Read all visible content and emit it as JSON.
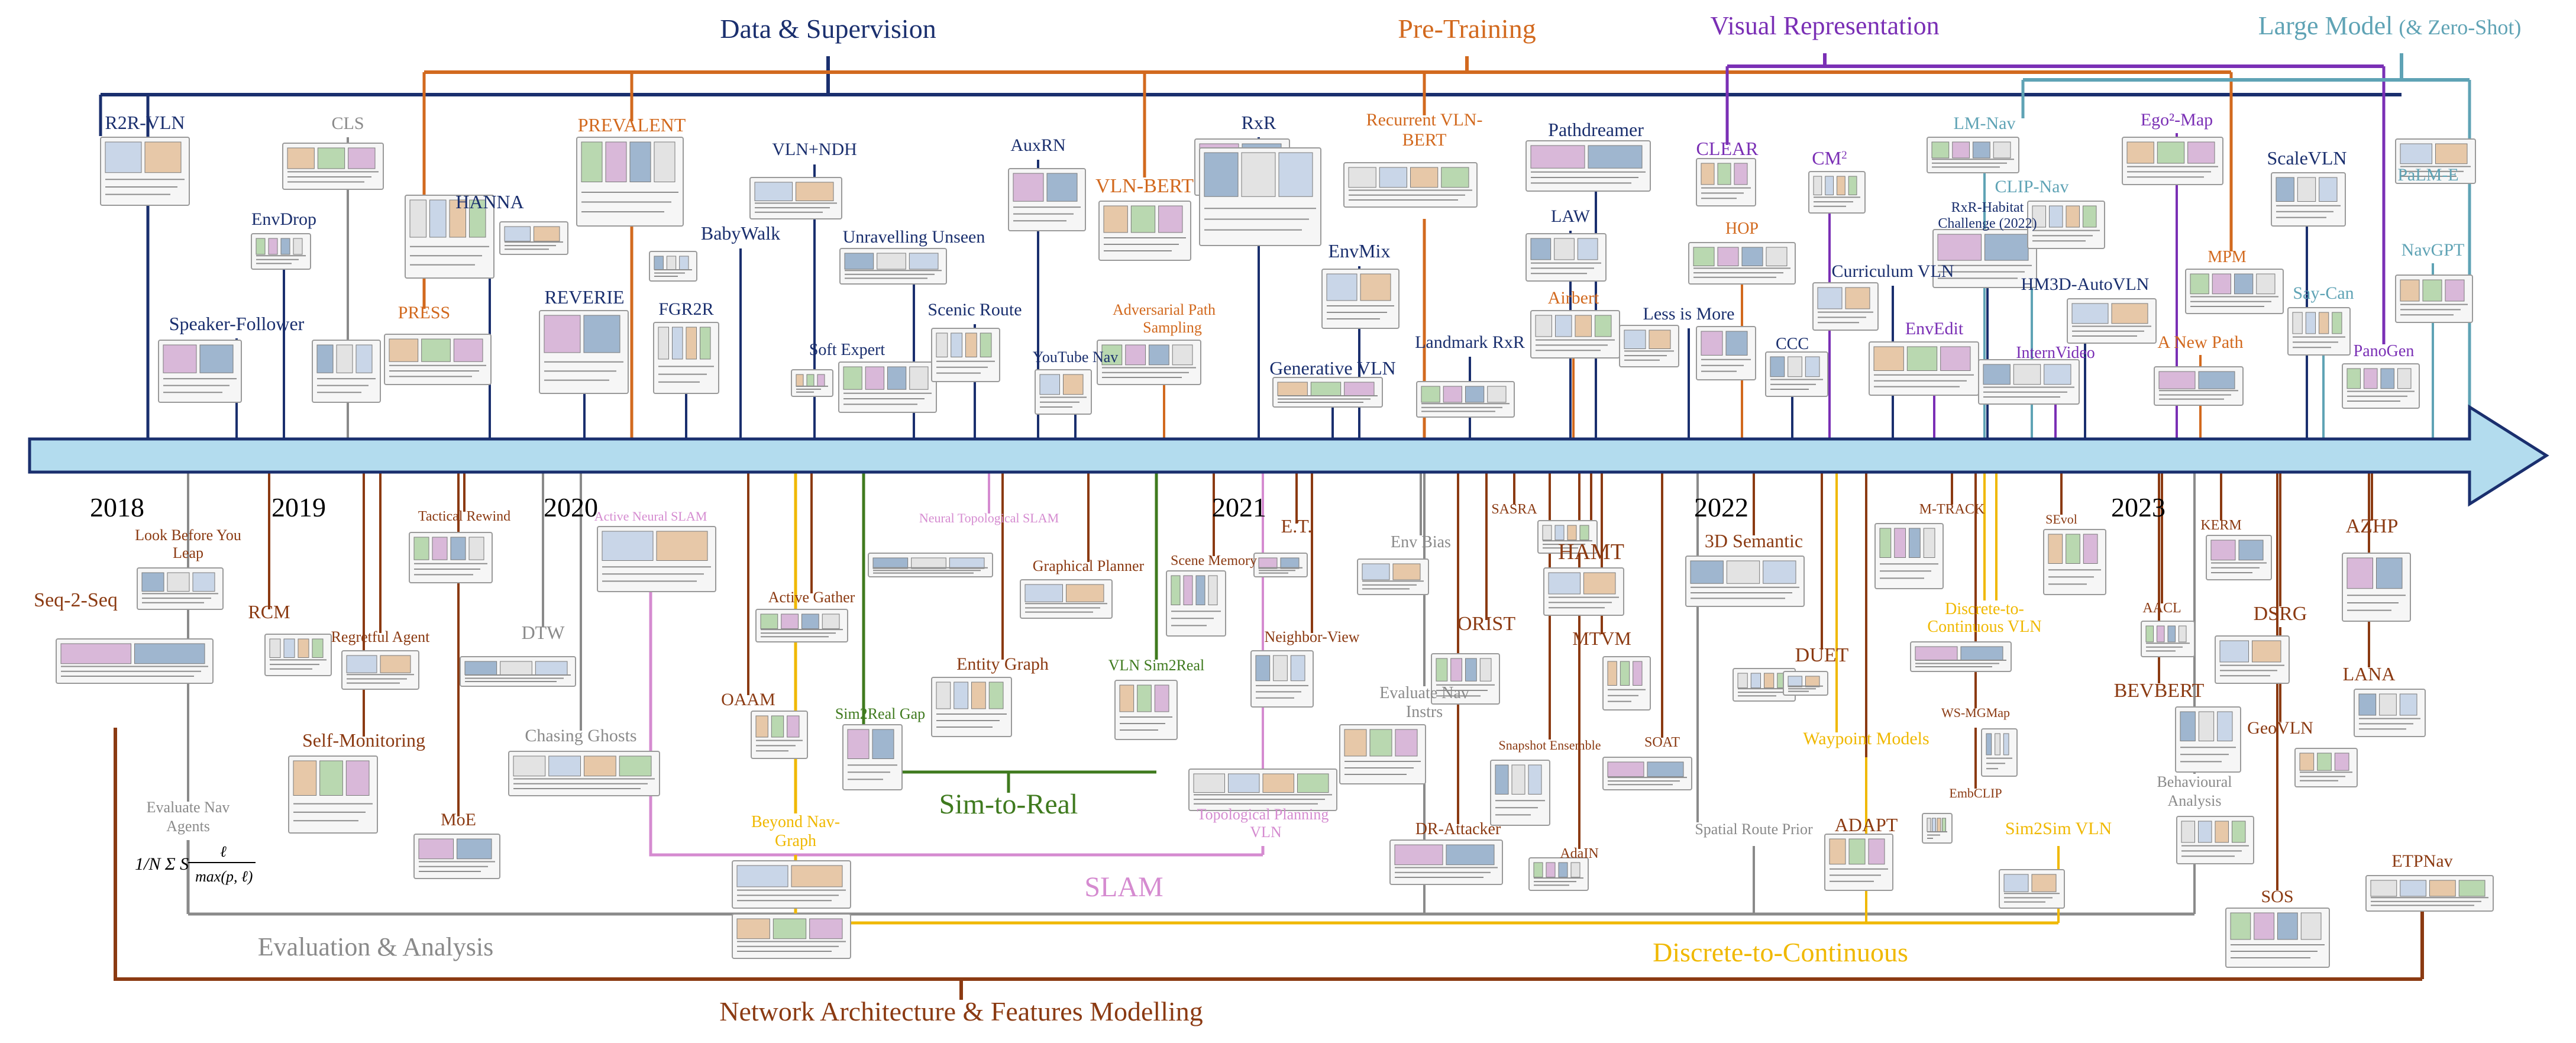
{
  "colors": {
    "data": "#1a2f6e",
    "pre": "#d2691e",
    "visual": "#7a2fb5",
    "large": "#5fa3b5",
    "arch": "#8b3a12",
    "eval": "#8a8a8a",
    "slam": "#d58bd0",
    "d2c": "#f0b800",
    "sim": "#3f7a1e",
    "timeline": "#b3dcee",
    "timelineEdge": "#1a2f6e"
  },
  "categories": {
    "data": "Data & Supervision",
    "pre": "Pre-Training",
    "visual": "Visual Representation",
    "large": "Large Model",
    "large_sub": "(& Zero-Shot)",
    "arch": "Network Architecture & Features Modelling",
    "eval": "Evaluation & Analysis",
    "slam": "SLAM",
    "d2c": "Discrete-to-Continuous",
    "sim": "Sim-to-Real"
  },
  "years": [
    "2018",
    "2019",
    "2020",
    "2021",
    "2022",
    "2023"
  ],
  "formula": {
    "lhs": "1/N Σ S",
    "frac_num": "ℓ",
    "frac_den": "max(p, ℓ)"
  },
  "papers_top": [
    {
      "label": "R2R-VLN",
      "c": "data"
    },
    {
      "label": "CLS",
      "c": "eval"
    },
    {
      "label": "EnvDrop",
      "c": "data"
    },
    {
      "label": "Speaker-Follower",
      "c": "data"
    },
    {
      "label": "HANNA",
      "c": "data"
    },
    {
      "label": "PRESS",
      "c": "pre"
    },
    {
      "label": "PREVALENT",
      "c": "pre"
    },
    {
      "label": "REVERIE",
      "c": "data"
    },
    {
      "label": "BabyWalk",
      "c": "data"
    },
    {
      "label": "FGR2R",
      "c": "data"
    },
    {
      "label": "VLN+NDH",
      "c": "data"
    },
    {
      "label": "Soft Expert",
      "c": "data"
    },
    {
      "label": "AuxRN",
      "c": "data"
    },
    {
      "label": "Unravelling Unseen",
      "c": "data"
    },
    {
      "label": "Scenic Route",
      "c": "data"
    },
    {
      "label": "VLN-BERT",
      "c": "pre"
    },
    {
      "label": "YouTube Nav",
      "c": "data"
    },
    {
      "label": "Adversarial Path",
      "c": "pre"
    },
    {
      "label": "Sampling",
      "c": "pre"
    },
    {
      "label": "RxR",
      "c": "data"
    },
    {
      "label": "Recurrent VLN-",
      "c": "pre"
    },
    {
      "label": "BERT",
      "c": "pre"
    },
    {
      "label": "EnvMix",
      "c": "data"
    },
    {
      "label": "Generative VLN",
      "c": "data"
    },
    {
      "label": "Landmark RxR",
      "c": "data"
    },
    {
      "label": "Pathdreamer",
      "c": "data"
    },
    {
      "label": "LAW",
      "c": "data"
    },
    {
      "label": "Airbert",
      "c": "pre"
    },
    {
      "label": "CLEAR",
      "c": "visual"
    },
    {
      "label": "HOP",
      "c": "pre"
    },
    {
      "label": "Less is More",
      "c": "data"
    },
    {
      "label": "CCC",
      "c": "data"
    },
    {
      "label": "CM",
      "c": "visual"
    },
    {
      "label": "Curriculum VLN",
      "c": "data"
    },
    {
      "label": "LM-Nav",
      "c": "large"
    },
    {
      "label": "RxR-Habitat",
      "c": "data"
    },
    {
      "label": "Challenge (2022)",
      "c": "data"
    },
    {
      "label": "EnvEdit",
      "c": "visual"
    },
    {
      "label": "CLIP-Nav",
      "c": "large"
    },
    {
      "label": "InternVideo",
      "c": "visual"
    },
    {
      "label": "HM3D-AutoVLN",
      "c": "data"
    },
    {
      "label": "Ego²-Map",
      "c": "visual"
    },
    {
      "label": "MPM",
      "c": "pre"
    },
    {
      "label": "A New Path",
      "c": "pre"
    },
    {
      "label": "ScaleVLN",
      "c": "data"
    },
    {
      "label": "Say-Can",
      "c": "large"
    },
    {
      "label": "PaLM-E",
      "c": "large"
    },
    {
      "label": "NavGPT",
      "c": "large"
    },
    {
      "label": "PanoGen",
      "c": "visual"
    }
  ],
  "papers_bottom": [
    {
      "label": "Look Before You",
      "c": "arch"
    },
    {
      "label": "Leap",
      "c": "arch"
    },
    {
      "label": "Seq-2-Seq",
      "c": "arch"
    },
    {
      "label": "RCM",
      "c": "arch"
    },
    {
      "label": "Regretful Agent",
      "c": "arch"
    },
    {
      "label": "Self-Monitoring",
      "c": "arch"
    },
    {
      "label": "Tactical Rewind",
      "c": "arch"
    },
    {
      "label": "MoE",
      "c": "arch"
    },
    {
      "label": "DTW",
      "c": "eval"
    },
    {
      "label": "Chasing Ghosts",
      "c": "eval"
    },
    {
      "label": "Evaluate Nav",
      "c": "eval"
    },
    {
      "label": "Agents",
      "c": "eval"
    },
    {
      "label": "Active Neural SLAM",
      "c": "slam"
    },
    {
      "label": "OAAM",
      "c": "arch"
    },
    {
      "label": "Active Gather",
      "c": "arch"
    },
    {
      "label": "Beyond Nav-",
      "c": "d2c"
    },
    {
      "label": "Graph",
      "c": "d2c"
    },
    {
      "label": "Sim2Real Gap",
      "c": "sim"
    },
    {
      "label": "Neural Topological SLAM",
      "c": "slam"
    },
    {
      "label": "Entity Graph",
      "c": "arch"
    },
    {
      "label": "Graphical Planner",
      "c": "arch"
    },
    {
      "label": "VLN Sim2Real",
      "c": "sim"
    },
    {
      "label": "Scene Memory",
      "c": "arch"
    },
    {
      "label": "E.T.",
      "c": "arch"
    },
    {
      "label": "Neighbor-View",
      "c": "arch"
    },
    {
      "label": "Topological Planning",
      "c": "slam"
    },
    {
      "label": "VLN",
      "c": "slam"
    },
    {
      "label": "Env Bias",
      "c": "eval"
    },
    {
      "label": "Evaluate Nav",
      "c": "eval"
    },
    {
      "label": "Instrs",
      "c": "eval"
    },
    {
      "label": "SASRA",
      "c": "arch"
    },
    {
      "label": "ORIST",
      "c": "arch"
    },
    {
      "label": "DR-Attacker",
      "c": "arch"
    },
    {
      "label": "Snapshot Ensemble",
      "c": "arch"
    },
    {
      "label": "HAMT",
      "c": "arch"
    },
    {
      "label": "MTVM",
      "c": "arch"
    },
    {
      "label": "AdaIN",
      "c": "arch"
    },
    {
      "label": "SOAT",
      "c": "arch"
    },
    {
      "label": "Spatial Route Prior",
      "c": "eval"
    },
    {
      "label": "3D Semantic",
      "c": "arch"
    },
    {
      "label": "DUET",
      "c": "arch"
    },
    {
      "label": "Waypoint Models",
      "c": "d2c"
    },
    {
      "label": "ADAPT",
      "c": "arch"
    },
    {
      "label": "M-TRACK",
      "c": "arch"
    },
    {
      "label": "Discrete-to-",
      "c": "d2c"
    },
    {
      "label": "Continuous VLN",
      "c": "d2c"
    },
    {
      "label": "WS-MGMap",
      "c": "arch"
    },
    {
      "label": "EmbCLIP",
      "c": "arch"
    },
    {
      "label": "Sim2Sim VLN",
      "c": "d2c"
    },
    {
      "label": "SEvol",
      "c": "arch"
    },
    {
      "label": "AACL",
      "c": "arch"
    },
    {
      "label": "KERM",
      "c": "arch"
    },
    {
      "label": "BEVBERT",
      "c": "arch"
    },
    {
      "label": "Behavioural",
      "c": "eval"
    },
    {
      "label": "Analysis",
      "c": "eval"
    },
    {
      "label": "DSRG",
      "c": "arch"
    },
    {
      "label": "GeoVLN",
      "c": "arch"
    },
    {
      "label": "SOS",
      "c": "arch"
    },
    {
      "label": "AZHP",
      "c": "arch"
    },
    {
      "label": "LANA",
      "c": "arch"
    },
    {
      "label": "ETPNav",
      "c": "arch"
    }
  ]
}
